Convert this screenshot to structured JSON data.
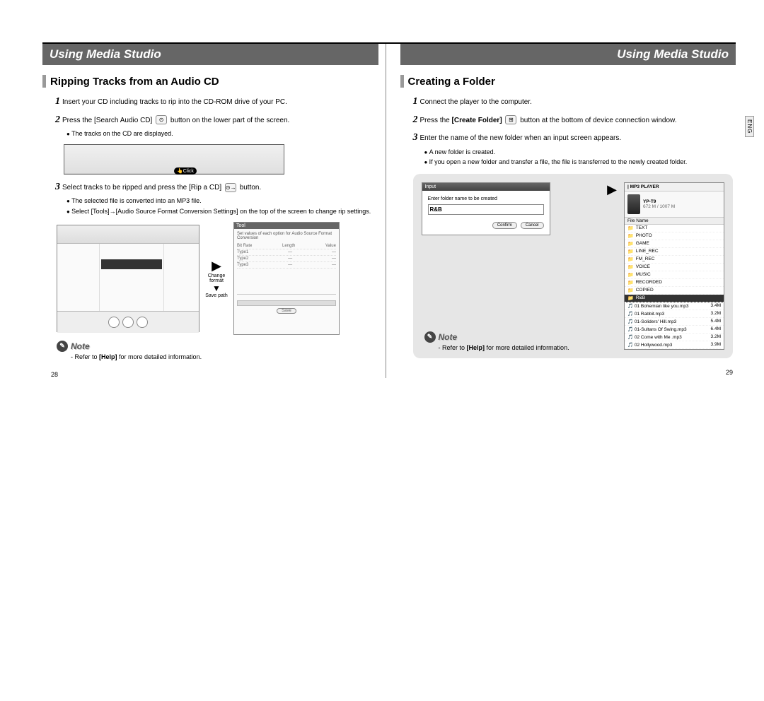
{
  "lang_tab": "ENG",
  "left": {
    "header": "Using Media Studio",
    "section": "Ripping Tracks from an Audio CD",
    "step1": "Insert your CD including tracks to rip into the CD-ROM drive of your PC.",
    "step2a": "Press the [Search Audio CD]",
    "step2b": "button on the lower part of the screen.",
    "step2_bullet": "The tracks on the CD are displayed.",
    "click_label": "Click",
    "step3a": "Select tracks to be ripped and press the [Rip a CD]",
    "step3b": "button.",
    "step3_bullet1": "The selected file is converted into an MP3 file.",
    "step3_bullet2": "Select [Tools]→[Audio Source Format Conversion Settings] on the top of the screen to change rip settings.",
    "side_label1": "Change format",
    "side_label2": "Save path",
    "settings_hdr": "Tool",
    "settings_rows": [
      "Bit Rate",
      "Length",
      "Value"
    ],
    "note_label": "Note",
    "note_text_a": "- Refer to ",
    "note_text_bold": "[Help]",
    "note_text_b": " for more detailed information.",
    "page_num": "28"
  },
  "right": {
    "header": "Using Media Studio",
    "section": "Creating a Folder",
    "step1": "Connect the player to the computer.",
    "step2a": "Press the ",
    "step2_bold": "[Create Folder]",
    "step2b": "button at the bottom of device connection window.",
    "step3": "Enter the name of the new folder when an input screen appears.",
    "step3_bullet1": "A new folder is created.",
    "step3_bullet2": "If you open a new folder and transfer a file, the file is transferred to the newly created folder.",
    "dlg_title": "Input",
    "dlg_prompt": "Enter folder name to be created",
    "dlg_value": "R&B",
    "dlg_confirm": "Confirm",
    "dlg_cancel": "Cancel",
    "player_hdr": "| MP3 PLAYER",
    "player_model": "YP-T9",
    "player_cap": "672 M / 1007 M",
    "player_sub": "File Name",
    "folders": [
      "TEXT",
      "PHOTO",
      "GAME",
      "LINE_REC",
      "FM_REC",
      "VOICE",
      "MUSIC",
      "RECORDED",
      "COPIED"
    ],
    "hl_folder": "R&B",
    "files": [
      {
        "n": "01 Bohemian like you.mp3",
        "s": "3.4M"
      },
      {
        "n": "01 Rabbit.mp3",
        "s": "3.2M"
      },
      {
        "n": "01-Soliders' Hill.mp3",
        "s": "5.4M"
      },
      {
        "n": "01-Sultans Of Swing.mp3",
        "s": "6.4M"
      },
      {
        "n": "02 Come with Me .mp3",
        "s": "3.2M"
      },
      {
        "n": "02 Hollywood.mp3",
        "s": "3.9M"
      }
    ],
    "note_label": "Note",
    "note_text_a": "- Refer to ",
    "note_text_bold": "[Help]",
    "note_text_b": " for more detailed information.",
    "page_num": "29"
  }
}
